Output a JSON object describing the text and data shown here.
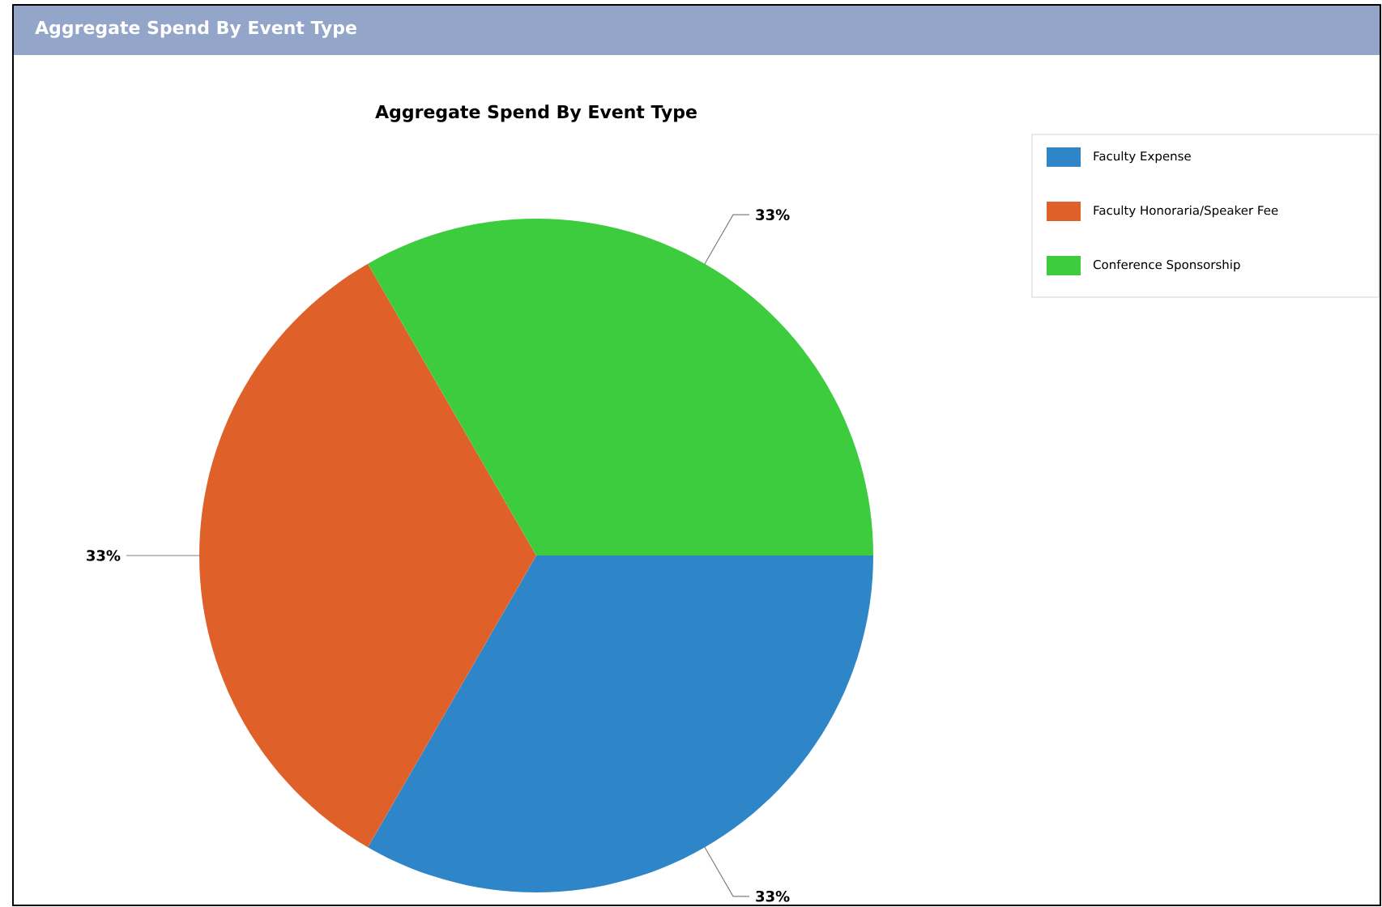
{
  "chart_data": {
    "type": "pie",
    "title": "Aggregate Spend By Event Type",
    "annotations": [
      "Aggregate Spend By Event Type"
    ],
    "categories": [
      "Faculty Expense",
      "Faculty Honoraria/Speaker Fee",
      "Conference Sponsorship"
    ],
    "values": [
      33,
      33,
      33
    ],
    "value_labels": [
      "33%",
      "33%",
      "33%"
    ],
    "colors": [
      "#2e86c8",
      "#e0602a",
      "#3dcc3d"
    ],
    "legend": "top right"
  }
}
